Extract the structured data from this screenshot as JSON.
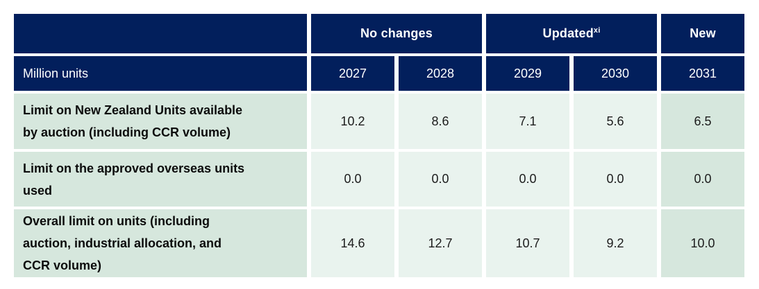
{
  "chart_data": {
    "type": "table",
    "unit_label": "Million units",
    "column_groups": [
      {
        "label": "No changes",
        "years": [
          "2027",
          "2028"
        ]
      },
      {
        "label": "Updated",
        "footnote_marker": "xi",
        "years": [
          "2029",
          "2030"
        ]
      },
      {
        "label": "New",
        "years": [
          "2031"
        ]
      }
    ],
    "years": [
      "2027",
      "2028",
      "2029",
      "2030",
      "2031"
    ],
    "rows": [
      {
        "label": "Limit on New Zealand Units available by auction (including CCR volume)",
        "label_lines": [
          "Limit on New Zealand Units available",
          "by auction (including CCR volume)"
        ],
        "values": [
          "10.2",
          "8.6",
          "7.1",
          "5.6",
          "6.5"
        ]
      },
      {
        "label": "Limit on the approved overseas units used",
        "label_lines": [
          "Limit on the approved overseas units",
          "used"
        ],
        "values": [
          "0.0",
          "0.0",
          "0.0",
          "0.0",
          "0.0"
        ]
      },
      {
        "label": "Overall limit on units (including auction, industrial allocation, and CCR volume)",
        "label_lines": [
          "Overall limit on units (including",
          "auction, industrial allocation, and",
          "CCR volume)"
        ],
        "values": [
          "14.6",
          "12.7",
          "10.7",
          "9.2",
          "10.0"
        ]
      }
    ],
    "colors": {
      "header_background": "#021f5c",
      "header_text": "#ffffff",
      "label_column_background": "#d6e7dd",
      "value_cell_background": "#e9f3ee",
      "new_column_background": "#d6e7dd",
      "body_text": "#0c0c0c",
      "cell_gap": "#ffffff"
    }
  }
}
